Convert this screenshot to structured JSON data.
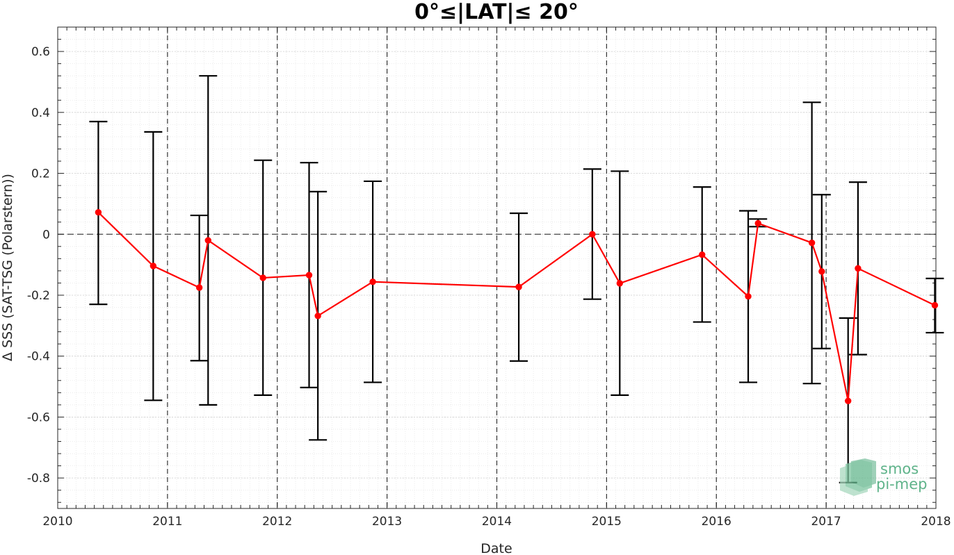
{
  "chart_data": {
    "type": "line",
    "title": "0°≤|LAT|≤ 20°",
    "xlabel": "Date",
    "ylabel": "Δ SSS (SAT-TSG (Polarstern))",
    "xlim": [
      2010,
      2018
    ],
    "ylim": [
      -0.9,
      0.68
    ],
    "x_ticks": [
      2010,
      2011,
      2012,
      2013,
      2014,
      2015,
      2016,
      2017,
      2018
    ],
    "x_tick_labels": [
      "2010",
      "2011",
      "2012",
      "2013",
      "2014",
      "2015",
      "2016",
      "2017",
      "2018"
    ],
    "y_ticks": [
      -0.8,
      -0.6,
      -0.4,
      -0.2,
      0,
      0.2,
      0.4,
      0.6
    ],
    "y_tick_labels": [
      "-0.8",
      "-0.6",
      "-0.4",
      "-0.2",
      "0",
      "0.2",
      "0.4",
      "0.6"
    ],
    "year_boundaries": [
      2011,
      2012,
      2013,
      2014,
      2015,
      2016,
      2017
    ],
    "zero_line": 0,
    "grid": true,
    "series": [
      {
        "color": "#ff0000",
        "x": [
          2010.37,
          2010.87,
          2011.29,
          2011.37,
          2011.87,
          2012.29,
          2012.37,
          2012.87,
          2014.2,
          2014.87,
          2015.12,
          2015.87,
          2016.29,
          2016.38,
          2016.87,
          2016.96,
          2017.2,
          2017.29,
          2017.99
        ],
        "y": [
          0.072,
          -0.104,
          -0.175,
          -0.02,
          -0.143,
          -0.134,
          -0.268,
          -0.156,
          -0.173,
          0.0,
          -0.161,
          -0.067,
          -0.204,
          0.036,
          -0.028,
          -0.122,
          -0.547,
          -0.112,
          -0.233
        ],
        "err_low": [
          -0.23,
          -0.545,
          -0.415,
          -0.56,
          -0.528,
          -0.503,
          -0.675,
          -0.486,
          -0.416,
          -0.213,
          -0.528,
          -0.288,
          -0.486,
          0.025,
          -0.49,
          -0.375,
          -0.815,
          -0.395,
          -0.323
        ],
        "err_high": [
          0.37,
          0.336,
          0.062,
          0.52,
          0.243,
          0.235,
          0.14,
          0.174,
          0.069,
          0.214,
          0.207,
          0.155,
          0.077,
          0.05,
          0.433,
          0.13,
          -0.275,
          0.171,
          -0.145
        ]
      }
    ],
    "errorbar_color": "#000000"
  },
  "logo": {
    "line1": "smos",
    "line2": "pi-mep",
    "color": "#5fb38a"
  }
}
